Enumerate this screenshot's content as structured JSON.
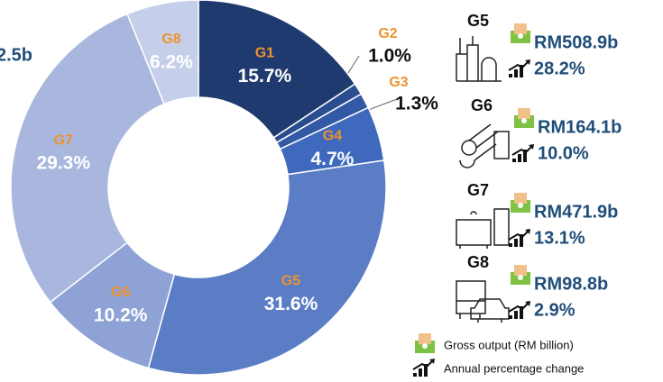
{
  "chart_data": {
    "type": "donut",
    "categories": [
      "G1",
      "G2",
      "G3",
      "G4",
      "G5",
      "G6",
      "G7",
      "G8"
    ],
    "values": [
      15.7,
      1.0,
      1.3,
      4.7,
      31.6,
      10.2,
      29.3,
      6.2
    ],
    "value_labels": [
      "15.7%",
      "1.0%",
      "1.3%",
      "4.7%",
      "31.6%",
      "10.2%",
      "29.3%",
      "6.2%"
    ],
    "colors": [
      "#1f3a6e",
      "#2a4d90",
      "#3359a6",
      "#3e69bd",
      "#5b7dc6",
      "#8ea2d5",
      "#a9b7df",
      "#c6cfea"
    ],
    "annotation": "2.5b"
  },
  "panel": {
    "rows": [
      {
        "group": "G5",
        "output": "RM508.9b",
        "change": "28.2%"
      },
      {
        "group": "G6",
        "output": "RM164.1b",
        "change": "10.0%"
      },
      {
        "group": "G7",
        "output": "RM471.9b",
        "change": "13.1%"
      },
      {
        "group": "G8",
        "output": "RM98.8b",
        "change": "2.9%"
      }
    ],
    "legend": [
      "Gross output (RM billion)",
      "Annual percentage change"
    ]
  }
}
